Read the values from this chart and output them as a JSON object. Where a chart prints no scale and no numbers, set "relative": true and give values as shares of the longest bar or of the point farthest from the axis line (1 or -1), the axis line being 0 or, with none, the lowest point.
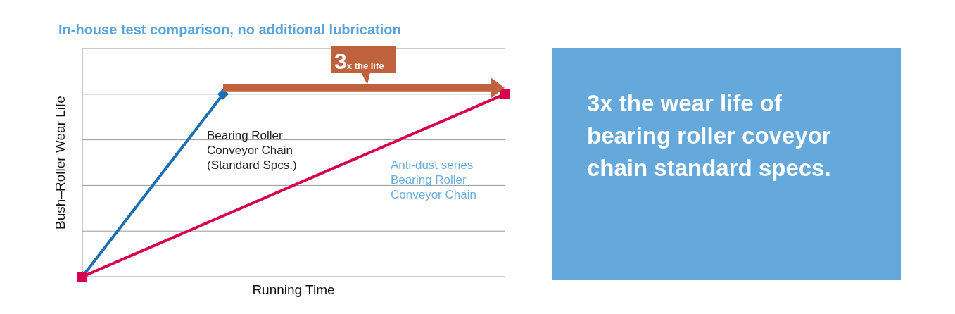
{
  "chart_data": {
    "type": "line",
    "relative": true,
    "title": "In-house test comparison, no additional lubrication",
    "xlabel": "Running Time",
    "ylabel": "Bush–Roller Wear Life",
    "categories": [
      null,
      null,
      null,
      null
    ],
    "grid": "y",
    "legend": false,
    "series": [
      {
        "name": "Bearing Roller\nConveyor Chain\n(Standard Spcs.)",
        "color": "#1a6fb5",
        "values": [
          0,
          1,
          null,
          null
        ],
        "marker": "diamond"
      },
      {
        "name": "Anti-dust series\nBearing Roller\nConveyor Chain",
        "color": "#d6004f",
        "values": [
          0,
          null,
          null,
          1
        ],
        "marker": "square"
      }
    ],
    "annotations": [
      "3x the life",
      "3x the wear life of\nbearing roller coveyor\nchain standard specs."
    ]
  }
}
